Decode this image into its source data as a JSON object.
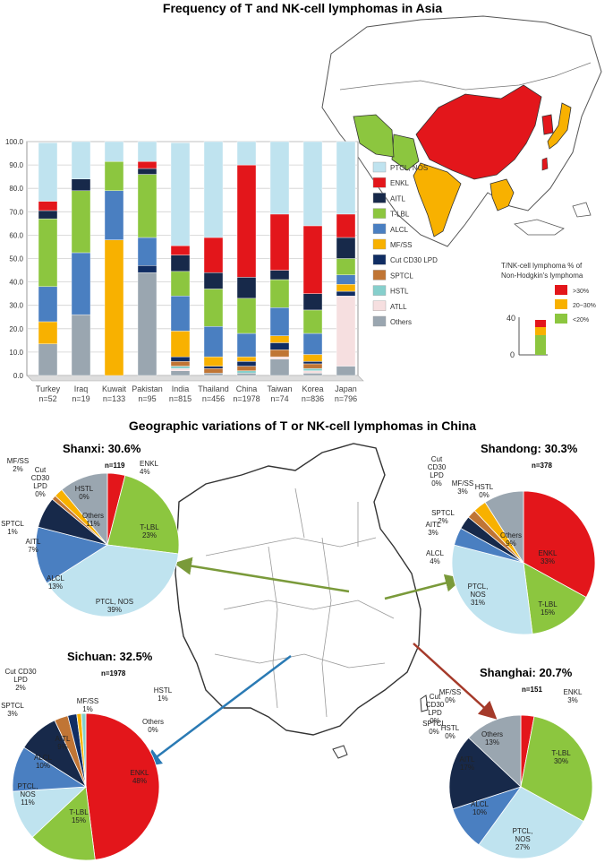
{
  "titles": {
    "top": "Frequency of T and NK-cell lymphomas in Asia",
    "bottom": "Geographic variations of T or NK-cell lymphomas in China"
  },
  "colors": {
    "PTCL, NOS": "#bfe3ef",
    "ENKL": "#e3161b",
    "AITL": "#17294a",
    "T-LBL": "#8cc63f",
    "ALCL": "#4a7fc1",
    "MF/SS": "#f8b100",
    "Cut CD30 LPD": "#102d63",
    "SPTCL": "#c07535",
    "HSTL": "#86cfcc",
    "ATLL": "#f6dfe0",
    "Others": "#9aa6b0"
  },
  "map_legend": {
    "title_line1": "T/NK-cell lymphoma % of",
    "title_line2": "Non-Hodgkin's lymphoma",
    "items": [
      {
        "label": ">30%",
        "color": "#e3161b"
      },
      {
        "label": "20~30%",
        "color": "#f8b100"
      },
      {
        "label": "<20%",
        "color": "#8cc63f"
      }
    ],
    "mini_axis": [
      "40",
      "0"
    ]
  },
  "chart_data": [
    {
      "type": "bar",
      "stacked": true,
      "title": "Frequency of T and NK-cell lymphomas in Asia",
      "ylim": [
        0,
        100
      ],
      "yticks": [
        "0.0",
        "10.0",
        "20.0",
        "30.0",
        "40.0",
        "50.0",
        "60.0",
        "70.0",
        "80.0",
        "90.0",
        "100.0"
      ],
      "grid": true,
      "legend_position": "right",
      "categories": [
        "Turkey",
        "Iraq",
        "Kuwait",
        "Pakistan",
        "India",
        "Thailand",
        "China",
        "Taiwan",
        "Korea",
        "Japan"
      ],
      "category_n": [
        "n=52",
        "n=19",
        "n=133",
        "n=95",
        "n=815",
        "n=456",
        "n=1978",
        "n=74",
        "n=836",
        "n=796"
      ],
      "series": [
        {
          "name": "Others",
          "values": [
            13.5,
            26,
            0,
            44,
            2,
            1,
            1,
            7,
            1,
            4
          ]
        },
        {
          "name": "ATLL",
          "values": [
            0,
            0,
            0,
            0,
            1,
            0,
            0,
            1,
            1,
            30
          ]
        },
        {
          "name": "HSTL",
          "values": [
            0,
            0,
            0,
            0,
            1,
            0,
            1,
            0,
            1,
            0
          ]
        },
        {
          "name": "SPTCL",
          "values": [
            0,
            0,
            0,
            0,
            2,
            2,
            2,
            3,
            2,
            0
          ]
        },
        {
          "name": "Cut CD30 LPD",
          "values": [
            0,
            0,
            0,
            3,
            2,
            1,
            2,
            3,
            1,
            2
          ]
        },
        {
          "name": "MF/SS",
          "values": [
            9.5,
            0,
            58,
            0,
            11,
            4,
            2,
            3,
            3,
            3
          ]
        },
        {
          "name": "ALCL",
          "values": [
            15,
            26.5,
            21,
            12,
            15,
            13,
            10,
            12,
            9,
            4
          ]
        },
        {
          "name": "T-LBL",
          "values": [
            29,
            26.5,
            12.5,
            27,
            10.5,
            16,
            15,
            12,
            10,
            7
          ]
        },
        {
          "name": "AITL",
          "values": [
            3.5,
            5,
            0,
            2.5,
            7,
            7,
            9,
            4,
            7,
            9
          ]
        },
        {
          "name": "ENKL",
          "values": [
            4,
            0,
            0,
            3,
            4,
            15,
            48,
            24,
            29,
            10
          ]
        },
        {
          "name": "PTCL, NOS",
          "values": [
            25,
            16,
            8.5,
            8.5,
            44,
            41,
            10,
            31,
            36,
            31
          ]
        }
      ]
    },
    {
      "type": "pie",
      "title": "Shanxi: 30.6%",
      "n": "n=119",
      "slices": [
        {
          "name": "ENKL",
          "value": 4
        },
        {
          "name": "T-LBL",
          "value": 23
        },
        {
          "name": "PTCL, NOS",
          "value": 39
        },
        {
          "name": "ALCL",
          "value": 13
        },
        {
          "name": "AITL",
          "value": 7
        },
        {
          "name": "SPTCL",
          "value": 1
        },
        {
          "name": "Cut CD30 LPD",
          "value": 0
        },
        {
          "name": "MF/SS",
          "value": 2
        },
        {
          "name": "HSTL",
          "value": 0
        },
        {
          "name": "Others",
          "value": 11
        }
      ],
      "labels": [
        {
          "lines": [
            "ENKL",
            "4%"
          ]
        },
        {
          "lines": [
            "T-LBL",
            "23%"
          ]
        },
        {
          "lines": [
            "PTCL, NOS",
            "39%"
          ]
        },
        {
          "lines": [
            "ALCL",
            "13%"
          ]
        },
        {
          "lines": [
            "AITL",
            "7%"
          ]
        },
        {
          "lines": [
            "SPTCL",
            "1%"
          ]
        },
        {
          "lines": [
            "Cut",
            "CD30",
            "LPD",
            "0%"
          ]
        },
        {
          "lines": [
            "MF/SS",
            "2%"
          ]
        },
        {
          "lines": [
            "HSTL",
            "0%"
          ]
        },
        {
          "lines": [
            "Others",
            "11%"
          ]
        }
      ]
    },
    {
      "type": "pie",
      "title": "Shandong: 30.3%",
      "n": "n=378",
      "slices": [
        {
          "name": "ENKL",
          "value": 33
        },
        {
          "name": "T-LBL",
          "value": 15
        },
        {
          "name": "PTCL, NOS",
          "value": 31
        },
        {
          "name": "ALCL",
          "value": 4
        },
        {
          "name": "AITL",
          "value": 3
        },
        {
          "name": "SPTCL",
          "value": 2
        },
        {
          "name": "Cut CD30 LPD",
          "value": 0
        },
        {
          "name": "MF/SS",
          "value": 3
        },
        {
          "name": "HSTL",
          "value": 0
        },
        {
          "name": "Others",
          "value": 9
        }
      ],
      "labels": [
        {
          "lines": [
            "ENKL",
            "33%"
          ]
        },
        {
          "lines": [
            "T-LBL",
            "15%"
          ]
        },
        {
          "lines": [
            "PTCL,",
            "NOS",
            "31%"
          ]
        },
        {
          "lines": [
            "ALCL",
            "4%"
          ]
        },
        {
          "lines": [
            "AITL",
            "3%"
          ]
        },
        {
          "lines": [
            "SPTCL",
            "2%"
          ]
        },
        {
          "lines": [
            "Cut",
            "CD30",
            "LPD",
            "0%"
          ]
        },
        {
          "lines": [
            "MF/SS",
            "3%"
          ]
        },
        {
          "lines": [
            "HSTL",
            "0%"
          ]
        },
        {
          "lines": [
            "Others",
            "9%"
          ]
        }
      ]
    },
    {
      "type": "pie",
      "title": "Sichuan: 32.5%",
      "n": "n=1978",
      "slices": [
        {
          "name": "ENKL",
          "value": 48
        },
        {
          "name": "T-LBL",
          "value": 15
        },
        {
          "name": "PTCL, NOS",
          "value": 11
        },
        {
          "name": "ALCL",
          "value": 10
        },
        {
          "name": "AITL",
          "value": 9
        },
        {
          "name": "SPTCL",
          "value": 3
        },
        {
          "name": "Cut CD30 LPD",
          "value": 2
        },
        {
          "name": "MF/SS",
          "value": 1
        },
        {
          "name": "HSTL",
          "value": 1
        },
        {
          "name": "Others",
          "value": 0
        }
      ],
      "labels": [
        {
          "lines": [
            "ENKL",
            "48%"
          ]
        },
        {
          "lines": [
            "T-LBL",
            "15%"
          ]
        },
        {
          "lines": [
            "PTCL,",
            "NOS",
            "11%"
          ]
        },
        {
          "lines": [
            "ALCL",
            "10%"
          ]
        },
        {
          "lines": [
            "AITL",
            "9%"
          ]
        },
        {
          "lines": [
            "SPTCL",
            "3%"
          ]
        },
        {
          "lines": [
            "Cut CD30",
            "LPD",
            "2%"
          ]
        },
        {
          "lines": [
            "MF/SS",
            "1%"
          ]
        },
        {
          "lines": [
            "HSTL",
            "1%"
          ]
        },
        {
          "lines": [
            "Others",
            "0%"
          ]
        }
      ]
    },
    {
      "type": "pie",
      "title": "Shanghai: 20.7%",
      "n": "n=151",
      "slices": [
        {
          "name": "ENKL",
          "value": 3
        },
        {
          "name": "T-LBL",
          "value": 30
        },
        {
          "name": "PTCL, NOS",
          "value": 27
        },
        {
          "name": "ALCL",
          "value": 10
        },
        {
          "name": "AITL",
          "value": 17
        },
        {
          "name": "SPTCL",
          "value": 0
        },
        {
          "name": "Cut CD30 LPD",
          "value": 0
        },
        {
          "name": "MF/SS",
          "value": 0
        },
        {
          "name": "HSTL",
          "value": 0
        },
        {
          "name": "Others",
          "value": 13
        }
      ],
      "labels": [
        {
          "lines": [
            "ENKL",
            "3%"
          ]
        },
        {
          "lines": [
            "T-LBL",
            "30%"
          ]
        },
        {
          "lines": [
            "PTCL,",
            "NOS",
            "27%"
          ]
        },
        {
          "lines": [
            "ALCL",
            "10%"
          ]
        },
        {
          "lines": [
            "AITL",
            "17%"
          ]
        },
        {
          "lines": [
            "SPTCL",
            "0%"
          ]
        },
        {
          "lines": [
            "Cut",
            "CD30",
            "LPD",
            "0%"
          ]
        },
        {
          "lines": [
            "MF/SS",
            "0%"
          ]
        },
        {
          "lines": [
            "HSTL",
            "0%"
          ]
        },
        {
          "lines": [
            "Others",
            "13%"
          ]
        }
      ]
    }
  ]
}
